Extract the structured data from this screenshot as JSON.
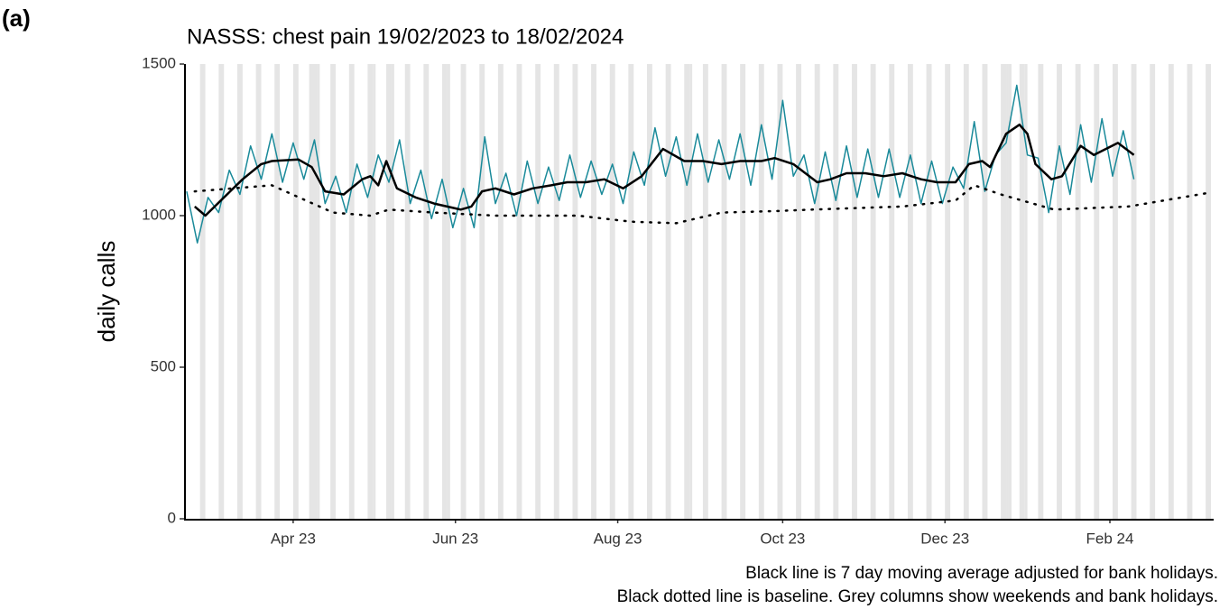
{
  "panel_label": "(a)",
  "chart_data": {
    "type": "line",
    "title": "NASSS: chest pain 19/02/2023 to 18/02/2024",
    "y_label": "daily calls",
    "notes": [
      "Black line is 7 day moving average adjusted for bank holidays.",
      "Black dotted line is baseline. Grey columns show weekends and bank holidays."
    ],
    "xlim": [
      0,
      387
    ],
    "ylim": [
      0,
      1500
    ],
    "yticks": [
      0,
      500,
      1000,
      1500
    ],
    "xticks": [
      {
        "value": 41,
        "label": "Apr 23"
      },
      {
        "value": 102,
        "label": "Jun 23"
      },
      {
        "value": 163,
        "label": "Aug 23"
      },
      {
        "value": 225,
        "label": "Oct 23"
      },
      {
        "value": 286,
        "label": "Dec 23"
      },
      {
        "value": 348,
        "label": "Feb 24"
      }
    ],
    "shade_color": "#e5e5e5",
    "weekends": [
      6,
      13,
      20,
      27,
      34,
      41,
      48,
      55,
      62,
      69,
      76,
      83,
      90,
      97,
      104,
      111,
      118,
      125,
      132,
      139,
      146,
      153,
      160,
      167,
      174,
      181,
      188,
      195,
      202,
      209,
      216,
      223,
      230,
      237,
      244,
      251,
      258,
      265,
      272,
      279,
      286,
      293,
      300,
      307,
      314,
      321,
      328,
      335,
      342,
      349,
      356,
      363,
      370,
      377,
      384
    ],
    "bank_holidays": [
      47,
      50,
      71,
      78,
      99,
      190,
      309,
      310,
      316
    ],
    "series": [
      {
        "color": "#1a8a9a",
        "style": "solid",
        "width": 1.5,
        "x": [
          1,
          5,
          9,
          13,
          17,
          21,
          25,
          29,
          33,
          37,
          41,
          45,
          49,
          53,
          57,
          61,
          65,
          69,
          73,
          77,
          81,
          85,
          89,
          93,
          97,
          101,
          105,
          109,
          113,
          117,
          121,
          125,
          129,
          133,
          137,
          141,
          145,
          149,
          153,
          157,
          161,
          165,
          169,
          173,
          177,
          181,
          185,
          189,
          193,
          197,
          201,
          205,
          209,
          213,
          217,
          221,
          225,
          229,
          233,
          237,
          241,
          245,
          249,
          253,
          257,
          261,
          265,
          269,
          273,
          277,
          281,
          285,
          289,
          293,
          297,
          301,
          305,
          309,
          313,
          317,
          321,
          325,
          329,
          333,
          337,
          341,
          345,
          349,
          353,
          357
        ],
        "values": [
          1080,
          910,
          1060,
          1010,
          1150,
          1070,
          1230,
          1120,
          1270,
          1110,
          1240,
          1120,
          1250,
          1040,
          1130,
          1010,
          1170,
          1060,
          1200,
          1110,
          1250,
          1040,
          1150,
          990,
          1120,
          960,
          1090,
          960,
          1260,
          1040,
          1140,
          1000,
          1180,
          1040,
          1160,
          1050,
          1200,
          1060,
          1180,
          1070,
          1170,
          1040,
          1210,
          1100,
          1290,
          1130,
          1260,
          1100,
          1270,
          1110,
          1250,
          1120,
          1270,
          1100,
          1300,
          1120,
          1380,
          1130,
          1200,
          1040,
          1210,
          1050,
          1230,
          1060,
          1220,
          1060,
          1220,
          1060,
          1200,
          1040,
          1180,
          1040,
          1160,
          1090,
          1310,
          1080,
          1200,
          1240,
          1430,
          1200,
          1190,
          1010,
          1230,
          1070,
          1300,
          1110,
          1320,
          1130,
          1280,
          1120
        ]
      },
      {
        "color": "#000000",
        "style": "solid",
        "width": 2.5,
        "x": [
          4,
          8,
          15,
          22,
          29,
          33,
          43,
          48,
          53,
          60,
          67,
          70,
          73,
          76,
          80,
          87,
          94,
          104,
          108,
          112,
          117,
          124,
          131,
          138,
          144,
          151,
          158,
          165,
          172,
          180,
          188,
          195,
          202,
          209,
          217,
          222,
          229,
          238,
          243,
          249,
          256,
          263,
          270,
          277,
          283,
          290,
          295,
          300,
          303,
          309,
          314,
          317,
          320,
          326,
          330,
          337,
          342,
          351,
          357
        ],
        "values": [
          1030,
          1000,
          1060,
          1120,
          1170,
          1180,
          1185,
          1160,
          1080,
          1070,
          1120,
          1130,
          1100,
          1180,
          1090,
          1060,
          1040,
          1020,
          1030,
          1080,
          1090,
          1070,
          1090,
          1100,
          1110,
          1110,
          1120,
          1090,
          1130,
          1220,
          1180,
          1180,
          1170,
          1180,
          1180,
          1190,
          1170,
          1110,
          1120,
          1140,
          1140,
          1130,
          1140,
          1120,
          1110,
          1110,
          1170,
          1180,
          1160,
          1270,
          1300,
          1270,
          1170,
          1120,
          1130,
          1230,
          1200,
          1240,
          1200
        ]
      },
      {
        "color": "#000000",
        "style": "dotted",
        "width": 2.5,
        "x": [
          4,
          33,
          56,
          70,
          77,
          94,
          117,
          148,
          168,
          185,
          202,
          222,
          236,
          270,
          290,
          297,
          307,
          327,
          355,
          385
        ],
        "values": [
          1080,
          1100,
          1010,
          1000,
          1020,
          1010,
          1000,
          1000,
          980,
          975,
          1010,
          1015,
          1020,
          1030,
          1050,
          1100,
          1070,
          1020,
          1030,
          1075
        ]
      }
    ]
  }
}
